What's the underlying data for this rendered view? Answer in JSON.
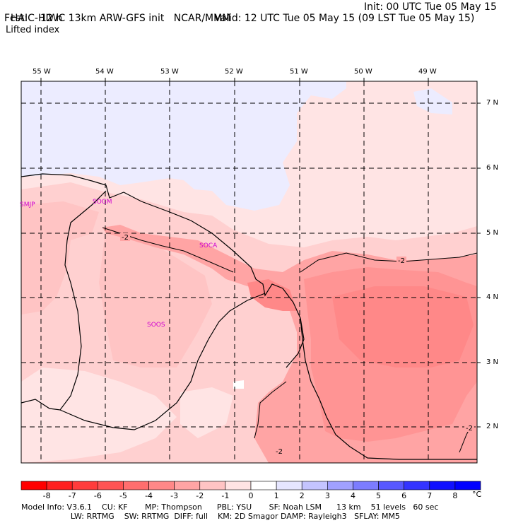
{
  "header": {
    "model_title": "HAIC-HIWC 13km ARW-GFS init",
    "org": "NCAR/MMM",
    "init": "Init: 00 UTC Tue 05 May 15",
    "fcst": "Fcst:    12 h",
    "valid": "Valid: 12 UTC Tue 05 May 15 (09 LST Tue 05 May 15)",
    "field": "Lifted index"
  },
  "map": {
    "lon_labels": [
      "55 W",
      "54 W",
      "53 W",
      "52 W",
      "51 W",
      "50 W",
      "49 W"
    ],
    "lat_labels": [
      "7 N",
      "6 N",
      "5 N",
      "4 N",
      "3 N",
      "2 N"
    ],
    "stations": [
      "SMJP",
      "SOGM",
      "SOCA",
      "SOOS"
    ],
    "contour_labels": [
      "-2",
      "-2",
      "-2",
      "-2"
    ]
  },
  "colorbar": {
    "levels": [
      "-8",
      "-7",
      "-6",
      "-5",
      "-4",
      "-3",
      "-2",
      "-1",
      "0",
      "1",
      "2",
      "3",
      "4",
      "5",
      "6",
      "7",
      "8"
    ],
    "unit": "°C",
    "colors": [
      "#ff0000",
      "#ff2020",
      "#ff3c3c",
      "#ff5454",
      "#ff6e6e",
      "#ff8888",
      "#ffa4a4",
      "#ffc4c4",
      "#ffe4e4",
      "#ffffff",
      "#e6e6ff",
      "#c4c4ff",
      "#a0a0ff",
      "#7c7cff",
      "#5858ff",
      "#3434ff",
      "#1010ff",
      "#0000ff"
    ]
  },
  "footer": {
    "line1": "Model Info: V3.6.1    CU: KF       MP: Thompson      PBL: YSU       SF: Noah LSM      13 km    51 levels   60 sec",
    "line2": "                    LW: RRTMG    SW: RRTMG  DIFF: full    KM: 2D Smagor DAMP: Rayleigh3   SFLAY: MM5"
  }
}
